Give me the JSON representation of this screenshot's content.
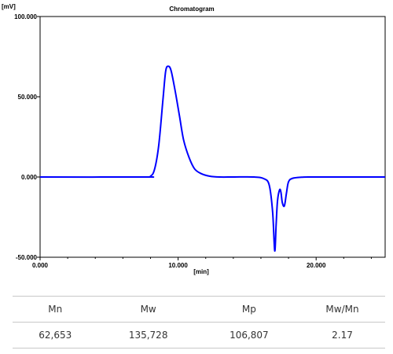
{
  "chart_data": {
    "type": "line",
    "title": "Chromatogram",
    "xlabel": "[min]",
    "ylabel": "[mV]",
    "xlim": [
      0,
      25
    ],
    "ylim": [
      -50,
      100
    ],
    "xticks": [
      "0.000",
      "10.000",
      "20.000"
    ],
    "yticks": [
      "100.000",
      "50.000",
      "0.000",
      "-50.000"
    ],
    "grid": false,
    "color": "#0000ff",
    "series": [
      {
        "x": [
          0,
          7.5,
          8.0,
          8.3,
          8.6,
          8.9,
          9.1,
          9.3,
          9.5,
          9.8,
          10.1,
          10.4,
          10.8,
          11.2,
          11.7,
          12.3,
          13,
          14,
          15.5,
          16.2,
          16.6,
          16.85,
          17.0,
          17.1,
          17.2,
          17.35,
          17.45,
          17.55,
          17.7,
          17.85,
          18.0,
          18.3,
          19,
          20,
          25
        ],
        "y": [
          0,
          0,
          0.5,
          5,
          20,
          48,
          66,
          69,
          66,
          53,
          38,
          23,
          12,
          5,
          2,
          0.5,
          0,
          0,
          0,
          -1,
          -5,
          -22,
          -46,
          -30,
          -15,
          -8,
          -9.5,
          -16,
          -18,
          -10,
          -3,
          -0.8,
          -0.1,
          0,
          0
        ]
      }
    ]
  },
  "table": {
    "headers": [
      "Mn",
      "Mw",
      "Mp",
      "Mw/Mn"
    ],
    "values": [
      "62,653",
      "135,728",
      "106,807",
      "2.17"
    ]
  }
}
